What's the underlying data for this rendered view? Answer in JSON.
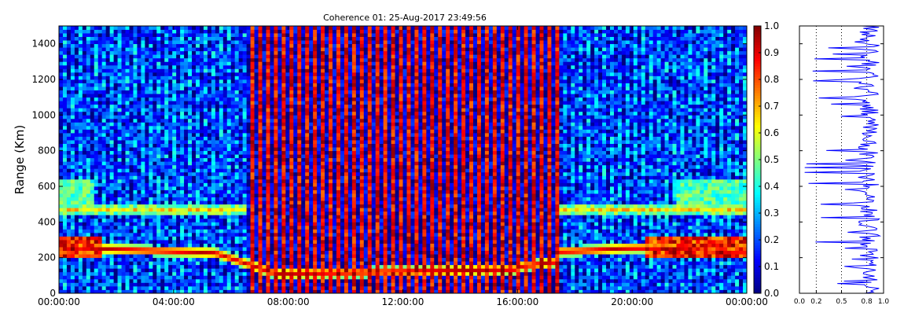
{
  "chart_data": [
    {
      "type": "heatmap",
      "title": "Coherence 01: 25-Aug-2017 23:49:56",
      "xlabel": "",
      "ylabel": "Range (Km)",
      "x_ticks": [
        "00:00:00",
        "04:00:00",
        "08:00:00",
        "12:00:00",
        "16:00:00",
        "20:00:00",
        "00:00:00"
      ],
      "x_range": [
        "00:00:00",
        "24:00:00"
      ],
      "y_ticks": [
        0,
        200,
        400,
        600,
        800,
        1000,
        1200,
        1400
      ],
      "ylim": [
        0,
        1500
      ],
      "colorbar": {
        "ticks": [
          "0.0",
          "0.1",
          "0.2",
          "0.3",
          "0.4",
          "0.5",
          "0.6",
          "0.7",
          "0.8",
          "0.9",
          "1.0"
        ],
        "range": [
          0,
          1
        ],
        "colormap": "jet"
      },
      "features": [
        {
          "description": "high coherence layer near 250-280 km",
          "from": "00:00:00",
          "to": "01:30:00"
        },
        {
          "description": "descending layer from ~300 km to ~100 km",
          "from": "05:30:00",
          "to": "07:30:00"
        },
        {
          "description": "steady high coherence layer near 100-120 km",
          "from": "07:30:00",
          "to": "17:00:00"
        },
        {
          "description": "layer near 250 km",
          "from": "17:00:00",
          "to": "24:00:00"
        },
        {
          "description": "secondary layer near 450-500 km",
          "from": "00:00:00",
          "to": "24:00:00"
        }
      ]
    },
    {
      "type": "line",
      "x_ticks": [
        "0.0",
        "0.2",
        "0.5",
        "0.8",
        "1.0"
      ],
      "xlim": [
        0,
        1
      ],
      "ylim": [
        0,
        1500
      ],
      "vertical_reference_lines": [
        0.2,
        0.5,
        0.8
      ],
      "series_color": "#0000ff"
    }
  ]
}
